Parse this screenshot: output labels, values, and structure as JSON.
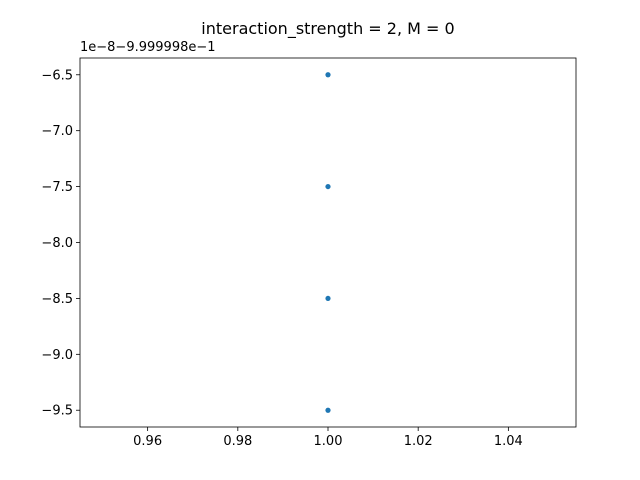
{
  "chart_data": {
    "type": "scatter",
    "title": "interaction_strength = 2, M = 0",
    "xlabel": "",
    "ylabel": "",
    "xlim": [
      0.945,
      1.055
    ],
    "ylim": [
      -9.65,
      -6.35
    ],
    "x_ticks": [
      0.96,
      0.98,
      1.0,
      1.02,
      1.04
    ],
    "x_tick_labels": [
      "0.96",
      "0.98",
      "1.00",
      "1.02",
      "1.04"
    ],
    "y_ticks": [
      -6.5,
      -7.0,
      -7.5,
      -8.0,
      -8.5,
      -9.0,
      -9.5
    ],
    "y_tick_labels": [
      "−6.5",
      "−7.0",
      "−7.5",
      "−8.0",
      "−8.5",
      "−9.0",
      "−9.5"
    ],
    "y_offset_label": "1e−8−9.999998e−1",
    "grid": false,
    "legend": "none",
    "series": [
      {
        "color": "#1f77b4",
        "x": [
          1.0,
          1.0,
          1.0,
          1.0
        ],
        "y": [
          -6.5,
          -7.5,
          -8.5,
          -9.5
        ]
      }
    ]
  }
}
